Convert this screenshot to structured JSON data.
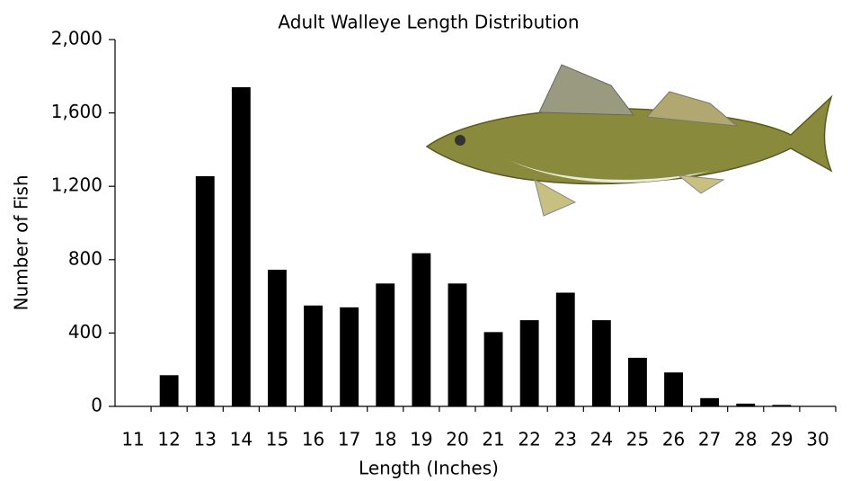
{
  "chart_data": {
    "type": "bar",
    "title": "Adult Walleye Length Distribution",
    "x_label": "Length (Inches)",
    "y_label": "Number of Fish",
    "categories": [
      "11",
      "12",
      "13",
      "14",
      "15",
      "16",
      "17",
      "18",
      "19",
      "20",
      "21",
      "22",
      "23",
      "24",
      "25",
      "26",
      "27",
      "28",
      "29",
      "30"
    ],
    "values": [
      0,
      170,
      1255,
      1740,
      745,
      550,
      540,
      670,
      835,
      670,
      405,
      470,
      620,
      470,
      265,
      185,
      45,
      15,
      8,
      0
    ],
    "color": "#000000",
    "ylim": [
      0,
      2000
    ],
    "yticks": [
      0,
      400,
      800,
      {
        "value": 1200,
        "label": "1,200"
      },
      {
        "value": 1600,
        "label": "1,600"
      },
      {
        "value": 2000,
        "label": "2,000"
      }
    ],
    "grid": false
  }
}
